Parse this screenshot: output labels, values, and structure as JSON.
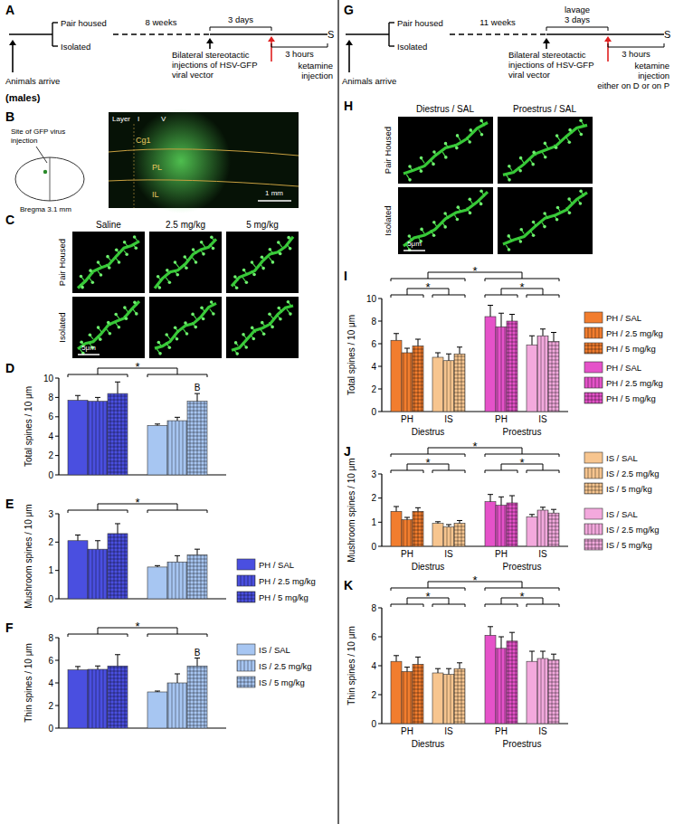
{
  "chart_data": [
    {
      "type": "bar",
      "title": "D",
      "y_label": "Total spines / 10 μm",
      "categories": [
        null,
        null,
        null,
        null,
        null,
        null
      ],
      "values": [
        7.7,
        7.6,
        8.4,
        5.1,
        5.6,
        7.6
      ],
      "errors": [
        0.5,
        0.4,
        1.2,
        0.15,
        0.35,
        0.8
      ],
      "colors": [
        "#4a4fe0",
        "#4a4fe0",
        "#4a4fe0",
        "#a7c6f2",
        "#a7c6f2",
        "#a7c6f2"
      ],
      "ylim": [
        0,
        10
      ],
      "yticks": [
        0,
        2,
        4,
        6,
        8,
        10
      ],
      "annotations": [
        null,
        null,
        null,
        null,
        null,
        "B"
      ],
      "brackets": [
        {
          "label": "*",
          "groups": [
            [
              0,
              1,
              2
            ],
            [
              3,
              4,
              5
            ]
          ]
        }
      ]
    },
    {
      "type": "bar",
      "title": "E",
      "y_label": "Mushroom spines / 10 μm",
      "categories": [
        null,
        null,
        null,
        null,
        null,
        null
      ],
      "values": [
        2.05,
        1.75,
        2.3,
        1.12,
        1.3,
        1.55
      ],
      "errors": [
        0.2,
        0.3,
        0.35,
        0.05,
        0.22,
        0.2
      ],
      "colors": [
        "#4a4fe0",
        "#4a4fe0",
        "#4a4fe0",
        "#a7c6f2",
        "#a7c6f2",
        "#a7c6f2"
      ],
      "ylim": [
        0,
        3
      ],
      "yticks": [
        0,
        1,
        2,
        3
      ],
      "brackets": [
        {
          "label": "*",
          "groups": [
            [
              0,
              1,
              2
            ],
            [
              3,
              4,
              5
            ]
          ]
        }
      ]
    },
    {
      "type": "bar",
      "title": "F",
      "y_label": "Thin spines / 10 μm",
      "categories": [
        null,
        null,
        null,
        null,
        null,
        null
      ],
      "values": [
        5.15,
        5.2,
        5.5,
        3.2,
        4.0,
        5.5
      ],
      "errors": [
        0.3,
        0.3,
        1.0,
        0.08,
        0.8,
        0.7
      ],
      "colors": [
        "#4a4fe0",
        "#4a4fe0",
        "#4a4fe0",
        "#a7c6f2",
        "#a7c6f2",
        "#a7c6f2"
      ],
      "ylim": [
        0,
        8
      ],
      "yticks": [
        0,
        2,
        4,
        6,
        8
      ],
      "annotations": [
        null,
        null,
        null,
        null,
        null,
        "B"
      ],
      "brackets": [
        {
          "label": "*",
          "groups": [
            [
              0,
              1,
              2
            ],
            [
              3,
              4,
              5
            ]
          ]
        }
      ]
    },
    {
      "type": "bar",
      "title": "I",
      "y_label": "Total spines / 10 μm",
      "categories": [
        null,
        null,
        null,
        null,
        null,
        null,
        null,
        null,
        null,
        null,
        null,
        null
      ],
      "values": [
        6.3,
        5.2,
        5.8,
        4.8,
        4.5,
        5.1,
        8.4,
        7.5,
        8.0,
        5.9,
        6.7,
        6.2
      ],
      "errors": [
        0.6,
        0.4,
        0.6,
        0.4,
        0.6,
        0.6,
        1.0,
        1.2,
        0.6,
        0.8,
        0.6,
        0.8
      ],
      "colors": [
        "#f27d2e",
        "#f27d2e",
        "#f27d2e",
        "#f7c58f",
        "#f7c58f",
        "#f7c58f",
        "#e552c9",
        "#e552c9",
        "#e552c9",
        "#f3a9dd",
        "#f3a9dd",
        "#f3a9dd"
      ],
      "ylim": [
        0,
        10
      ],
      "yticks": [
        0,
        2,
        4,
        6,
        8,
        10
      ],
      "x_groups": [
        {
          "label": "Diestrus",
          "subgroups": [
            "PH",
            "IS"
          ]
        },
        {
          "label": "Proestrus",
          "subgroups": [
            "PH",
            "IS"
          ]
        }
      ],
      "brackets": [
        {
          "label": "*",
          "groups": [
            [
              0,
              1,
              2,
              3,
              4,
              5
            ],
            [
              6,
              7,
              8,
              9,
              10,
              11
            ]
          ]
        },
        {
          "label": "*",
          "groups": [
            [
              0,
              1,
              2
            ],
            [
              3,
              4,
              5
            ]
          ]
        },
        {
          "label": "*",
          "groups": [
            [
              6,
              7,
              8
            ],
            [
              9,
              10,
              11
            ]
          ]
        }
      ]
    },
    {
      "type": "bar",
      "title": "J",
      "y_label": "Mushroom spines / 10 μm",
      "categories": [
        null,
        null,
        null,
        null,
        null,
        null,
        null,
        null,
        null,
        null,
        null,
        null
      ],
      "values": [
        1.45,
        1.1,
        1.45,
        0.95,
        0.8,
        0.95,
        1.85,
        1.7,
        1.8,
        1.22,
        1.5,
        1.38
      ],
      "errors": [
        0.2,
        0.1,
        0.15,
        0.07,
        0.1,
        0.12,
        0.3,
        0.35,
        0.3,
        0.1,
        0.12,
        0.15
      ],
      "colors": [
        "#f27d2e",
        "#f27d2e",
        "#f27d2e",
        "#f7c58f",
        "#f7c58f",
        "#f7c58f",
        "#e552c9",
        "#e552c9",
        "#e552c9",
        "#f3a9dd",
        "#f3a9dd",
        "#f3a9dd"
      ],
      "ylim": [
        0,
        3
      ],
      "yticks": [
        0,
        1,
        2,
        3
      ],
      "x_groups": [
        {
          "label": "Diestrus",
          "subgroups": [
            "PH",
            "IS"
          ]
        },
        {
          "label": "Proestrus",
          "subgroups": [
            "PH",
            "IS"
          ]
        }
      ],
      "brackets": [
        {
          "label": "*",
          "groups": [
            [
              0,
              1,
              2,
              3,
              4,
              5
            ],
            [
              6,
              7,
              8,
              9,
              10,
              11
            ]
          ]
        },
        {
          "label": "*",
          "groups": [
            [
              0,
              1,
              2
            ],
            [
              3,
              4,
              5
            ]
          ]
        },
        {
          "label": "*",
          "groups": [
            [
              6,
              7,
              8
            ],
            [
              9,
              10,
              11
            ]
          ]
        }
      ]
    },
    {
      "type": "bar",
      "title": "K",
      "y_label": "Thin spines / 10 μm",
      "categories": [
        null,
        null,
        null,
        null,
        null,
        null,
        null,
        null,
        null,
        null,
        null,
        null
      ],
      "values": [
        4.3,
        3.6,
        4.1,
        3.5,
        3.4,
        3.8,
        6.1,
        5.2,
        5.7,
        4.3,
        4.5,
        4.4
      ],
      "errors": [
        0.4,
        0.3,
        0.5,
        0.3,
        0.4,
        0.4,
        0.6,
        0.8,
        0.6,
        0.7,
        0.5,
        0.4
      ],
      "colors": [
        "#f27d2e",
        "#f27d2e",
        "#f27d2e",
        "#f7c58f",
        "#f7c58f",
        "#f7c58f",
        "#e552c9",
        "#e552c9",
        "#e552c9",
        "#f3a9dd",
        "#f3a9dd",
        "#f3a9dd"
      ],
      "ylim": [
        0,
        8
      ],
      "yticks": [
        0,
        2,
        4,
        6,
        8
      ],
      "x_groups": [
        {
          "label": "Diestrus",
          "subgroups": [
            "PH",
            "IS"
          ]
        },
        {
          "label": "Proestrus",
          "subgroups": [
            "PH",
            "IS"
          ]
        }
      ],
      "brackets": [
        {
          "label": "*",
          "groups": [
            [
              0,
              1,
              2,
              3,
              4,
              5
            ],
            [
              6,
              7,
              8,
              9,
              10,
              11
            ]
          ]
        },
        {
          "label": "*",
          "groups": [
            [
              0,
              1,
              2
            ],
            [
              3,
              4,
              5
            ]
          ]
        },
        {
          "label": "*",
          "groups": [
            [
              6,
              7,
              8
            ],
            [
              9,
              10,
              11
            ]
          ]
        }
      ]
    }
  ],
  "figure": {
    "panel_labels": [
      "A",
      "B",
      "C",
      "G",
      "H"
    ],
    "timeline_male": {
      "start": "Animals arrive",
      "branches": [
        "Pair housed",
        "Isolated"
      ],
      "duration": "8 weeks",
      "window": [
        "3 days"
      ],
      "surgery": [
        "Bilateral stereotactic",
        "injections of HSV-GFP",
        "viral vector"
      ],
      "treatment": [
        "ketamine",
        "injection"
      ],
      "end": "S",
      "delay": "3 hours",
      "sex": "(males)"
    },
    "timeline_female": {
      "start": "Animals arrive",
      "branches": [
        "Pair housed",
        "Isolated"
      ],
      "duration": "11 weeks",
      "window": [
        "lavage",
        "3 days"
      ],
      "surgery": [
        "Bilateral stereotactic",
        "injections of HSV-GFP",
        "viral vector"
      ],
      "treatment": [
        "ketamine",
        "injection",
        "either on D or on P"
      ],
      "end": "S",
      "delay": "3 hours"
    },
    "panel_b": {
      "schematic": [
        "Site of GFP virus",
        "injection"
      ],
      "bregma": "Bregma 3.1 mm",
      "layer": "Layer",
      "layer_marks": [
        "I",
        "V"
      ],
      "regions": [
        "Cg1",
        "PL",
        "IL"
      ],
      "scale": "1 mm"
    },
    "panel_c": {
      "columns": [
        "Saline",
        "2.5 mg/kg",
        "5 mg/kg"
      ],
      "rows": [
        "Pair Housed",
        "Isolated"
      ],
      "scale": "5μm"
    },
    "panel_h": {
      "columns": [
        "Diestrus / SAL",
        "Proestrus / SAL"
      ],
      "rows": [
        "Pair Housed",
        "Isolated"
      ],
      "scale": "5μm"
    },
    "legend_male": [
      {
        "name": "PH / SAL",
        "color": "#4a4fe0"
      },
      {
        "name": "PH / 2.5 mg/kg",
        "color": "#4a4fe0"
      },
      {
        "name": "PH / 5 mg/kg",
        "color": "#4a4fe0"
      },
      {
        "name": "IS / SAL",
        "color": "#a7c6f2"
      },
      {
        "name": "IS / 2.5 mg/kg",
        "color": "#a7c6f2"
      },
      {
        "name": "IS / 5 mg/kg",
        "color": "#a7c6f2"
      }
    ],
    "legend_female": [
      {
        "name": "PH / SAL",
        "color": "#f27d2e"
      },
      {
        "name": "PH / 2.5 mg/kg",
        "color": "#f27d2e"
      },
      {
        "name": "PH / 5 mg/kg",
        "color": "#f27d2e"
      },
      {
        "name": "PH / SAL",
        "color": "#e552c9"
      },
      {
        "name": "PH / 2.5 mg/kg",
        "color": "#e552c9"
      },
      {
        "name": "PH / 5 mg/kg",
        "color": "#e552c9"
      },
      {
        "name": "IS / SAL",
        "color": "#f7c58f"
      },
      {
        "name": "IS / 2.5 mg/kg",
        "color": "#f7c58f"
      },
      {
        "name": "IS / 5 mg/kg",
        "color": "#f7c58f"
      },
      {
        "name": "IS / SAL",
        "color": "#f3a9dd"
      },
      {
        "name": "IS / 2.5 mg/kg",
        "color": "#f3a9dd"
      },
      {
        "name": "IS / 5 mg/kg",
        "color": "#f3a9dd"
      }
    ]
  }
}
